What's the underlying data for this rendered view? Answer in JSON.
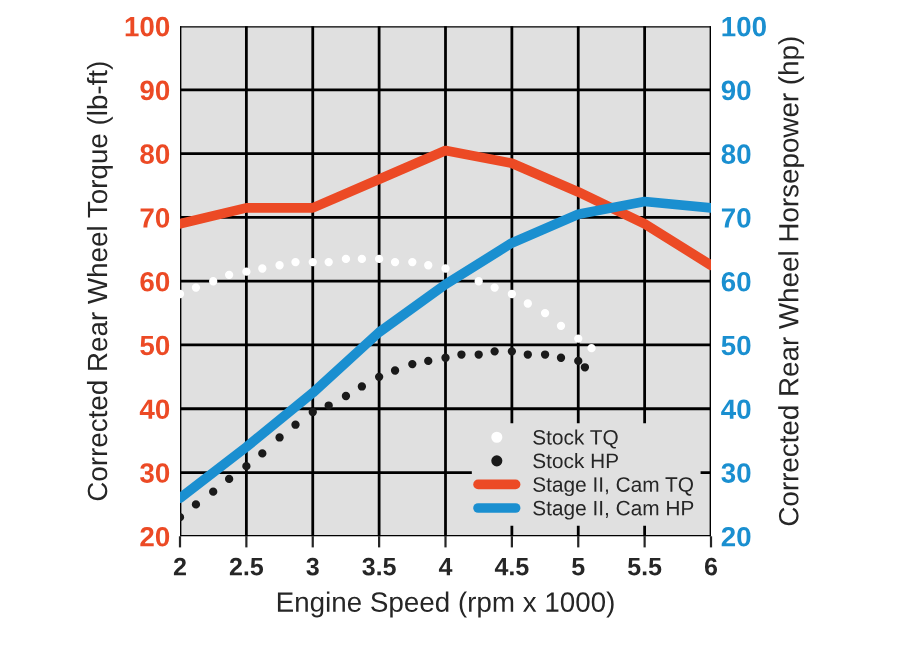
{
  "chart_data": {
    "type": "line",
    "xlabel": "Engine Speed (rpm x 1000)",
    "ylabel": "Corrected Rear Wheel Torque (lb-ft)",
    "y2label": "Corrected Rear Wheel Horsepower (hp)",
    "xlim": [
      2,
      6
    ],
    "xticks": [
      2,
      2.5,
      3,
      3.5,
      4,
      4.5,
      5,
      5.5,
      6
    ],
    "ylim": [
      20,
      100
    ],
    "yticks": [
      20,
      30,
      40,
      50,
      60,
      70,
      80,
      90,
      100
    ],
    "y2lim": [
      20,
      100
    ],
    "y2ticks": [
      20,
      30,
      40,
      50,
      60,
      70,
      80,
      90,
      100
    ],
    "grid": true,
    "legend": "bottom right",
    "series": [
      {
        "name": "Stock TQ",
        "type": "scatter",
        "marker": "circle",
        "color": "#ffffff",
        "x": [
          2,
          2.12,
          2.25,
          2.37,
          2.5,
          2.62,
          2.75,
          2.87,
          3,
          3.12,
          3.25,
          3.37,
          3.5,
          3.62,
          3.75,
          3.87,
          4,
          4.12,
          4.25,
          4.37,
          4.5,
          4.62,
          4.75,
          4.87,
          5,
          5.1
        ],
        "values": [
          58,
          59,
          60,
          61,
          61.5,
          62,
          62.5,
          63,
          63,
          63,
          63.5,
          63.5,
          63.5,
          63,
          63,
          62.5,
          62,
          null,
          60,
          59,
          58,
          56.5,
          55,
          53,
          51,
          49.5
        ]
      },
      {
        "name": "Stock HP",
        "type": "scatter",
        "marker": "circle",
        "axis": "y2",
        "color": "#1a1a1a",
        "x": [
          2,
          2.12,
          2.25,
          2.37,
          2.5,
          2.62,
          2.75,
          2.87,
          3,
          3.12,
          3.25,
          3.37,
          3.5,
          3.62,
          3.75,
          3.87,
          4,
          4.12,
          4.25,
          4.37,
          4.5,
          4.62,
          4.75,
          4.87,
          5,
          5.05
        ],
        "values": [
          23,
          25,
          27,
          29,
          31,
          33,
          35.5,
          37.5,
          39.5,
          40.5,
          42,
          43.5,
          45,
          46,
          47,
          47.5,
          48,
          48.5,
          48.5,
          49,
          49,
          48.5,
          48.5,
          48,
          47.5,
          46.5
        ]
      },
      {
        "name": "Stage II, Cam TQ",
        "color": "#ec4a25",
        "x": [
          2,
          2.5,
          3,
          3.5,
          4,
          4.5,
          5,
          5.5,
          6
        ],
        "values": [
          69,
          71.5,
          71.5,
          76,
          80.5,
          78.5,
          74,
          69,
          62.5
        ]
      },
      {
        "name": "Stage II, Cam HP",
        "axis": "y2",
        "color": "#1a8fd0",
        "x": [
          2,
          2.5,
          3,
          3.5,
          4,
          4.5,
          5,
          5.5,
          6
        ],
        "values": [
          26,
          34,
          42.5,
          52,
          59.5,
          66,
          70.5,
          72.5,
          71.5
        ]
      }
    ]
  }
}
